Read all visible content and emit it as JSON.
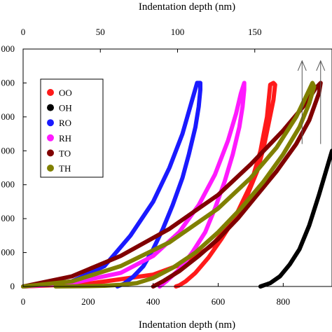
{
  "chart_data": {
    "type": "line",
    "title": "",
    "xlabel": "Indentation depth (nm)",
    "x2label": "Indentation depth (nm)",
    "ylabel": "",
    "xlim": [
      0,
      950
    ],
    "x2lim": [
      0,
      200
    ],
    "ylim": [
      0,
      7000
    ],
    "xticks": [
      0,
      200,
      400,
      600,
      800
    ],
    "xtick_labels": [
      "0",
      "200",
      "400",
      "600",
      "800"
    ],
    "x2ticks": [
      0,
      50,
      100,
      150
    ],
    "x2tick_labels": [
      "0",
      "50",
      "100",
      "150"
    ],
    "yticks": [
      0,
      1000,
      2000,
      3000,
      4000,
      5000,
      6000,
      7000
    ],
    "ytick_labels": [
      "0",
      "000",
      "000",
      "000",
      "000",
      "000",
      "000",
      "000"
    ],
    "legend_position": "upper-left",
    "grid": false,
    "arrows": [
      {
        "x": 858,
        "y_from": 4200,
        "y_to": 6650
      },
      {
        "x": 915,
        "y_from": 4200,
        "y_to": 6650
      }
    ],
    "series": [
      {
        "name": "OO",
        "color": "#ff1a1a",
        "x": [
          0,
          200,
          400,
          500,
          580,
          650,
          700,
          730,
          740,
          750,
          760,
          770,
          775,
          770,
          755,
          740,
          720,
          690,
          650,
          610,
          570,
          530,
          500,
          480,
          470
        ],
        "y": [
          0,
          80,
          350,
          700,
          1200,
          2000,
          3000,
          4000,
          4500,
          5000,
          5950,
          6000,
          5950,
          5500,
          4800,
          4100,
          3400,
          2700,
          2000,
          1400,
          850,
          400,
          150,
          30,
          0
        ]
      },
      {
        "name": "OH",
        "color": "#000000",
        "x": [
          730,
          760,
          790,
          820,
          850,
          880,
          910,
          950
        ],
        "y": [
          0,
          100,
          300,
          650,
          1100,
          1800,
          2700,
          4000
        ]
      },
      {
        "name": "RO",
        "color": "#1a1aff",
        "x": [
          0,
          150,
          250,
          330,
          400,
          450,
          490,
          520,
          535,
          545,
          545,
          540,
          530,
          510,
          490,
          460,
          430,
          400,
          370,
          340,
          310,
          290
        ],
        "y": [
          0,
          150,
          600,
          1500,
          2500,
          3500,
          4500,
          5500,
          6000,
          6000,
          5800,
          5300,
          4700,
          3900,
          3200,
          2400,
          1700,
          1100,
          600,
          300,
          80,
          0
        ]
      },
      {
        "name": "RH",
        "color": "#ff1aff",
        "x": [
          0,
          150,
          300,
          400,
          480,
          540,
          590,
          630,
          655,
          670,
          680,
          680,
          675,
          665,
          645,
          620,
          590,
          560,
          520,
          480,
          440,
          420
        ],
        "y": [
          0,
          100,
          400,
          900,
          1600,
          2400,
          3300,
          4300,
          5100,
          5700,
          6000,
          5800,
          5300,
          4700,
          3900,
          3100,
          2300,
          1600,
          1000,
          500,
          150,
          0
        ]
      },
      {
        "name": "TO",
        "color": "#800000",
        "x": [
          0,
          150,
          300,
          450,
          600,
          700,
          800,
          870,
          900,
          915,
          910,
          880,
          840,
          780,
          720,
          660,
          600,
          540,
          480,
          430,
          400
        ],
        "y": [
          0,
          300,
          900,
          1700,
          2700,
          3600,
          4600,
          5400,
          5850,
          6000,
          5700,
          4900,
          4200,
          3400,
          2700,
          2000,
          1400,
          900,
          450,
          150,
          0
        ]
      },
      {
        "name": "TH",
        "color": "#808000",
        "x": [
          0,
          150,
          300,
          450,
          600,
          700,
          780,
          840,
          870,
          890,
          895,
          880,
          850,
          800,
          740,
          670,
          600,
          530,
          460,
          400,
          350,
          300,
          250,
          200,
          150,
          120,
          100
        ],
        "y": [
          0,
          150,
          600,
          1300,
          2300,
          3200,
          4100,
          5000,
          5600,
          6000,
          5900,
          5400,
          4700,
          3900,
          3100,
          2300,
          1600,
          1000,
          550,
          250,
          100,
          50,
          20,
          10,
          5,
          2,
          0
        ]
      }
    ]
  }
}
